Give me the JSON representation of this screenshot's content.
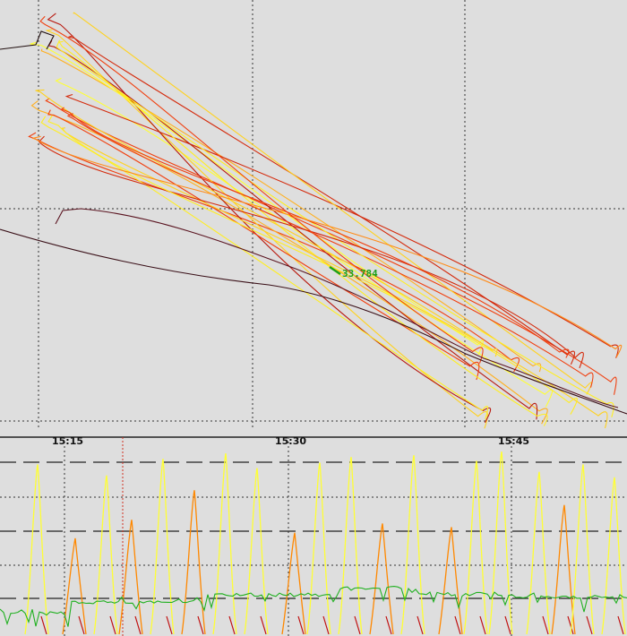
{
  "chart_data": [
    {
      "type": "line",
      "title": "",
      "description_hint": "track overlay",
      "grid": true,
      "annotation": {
        "text": "33.784",
        "color": "#1ca01c"
      },
      "tracks": 24
    },
    {
      "type": "line",
      "title": "",
      "x_tick_labels": [
        "15:15",
        "15:30",
        "15:45"
      ],
      "grid": true,
      "series_colors": {
        "high": "#ffff33",
        "mid": "#ff8800",
        "low": "#cc0000",
        "baseline": "#20b020"
      },
      "peaks": [
        {
          "t": 0.06,
          "h": 0.92,
          "c": "#ffff33"
        },
        {
          "t": 0.12,
          "h": 0.52,
          "c": "#ff8800"
        },
        {
          "t": 0.17,
          "h": 0.86,
          "c": "#ffff33"
        },
        {
          "t": 0.21,
          "h": 0.62,
          "c": "#ff8800"
        },
        {
          "t": 0.26,
          "h": 0.95,
          "c": "#ffff33"
        },
        {
          "t": 0.31,
          "h": 0.78,
          "c": "#ff8800"
        },
        {
          "t": 0.36,
          "h": 0.98,
          "c": "#ffff33"
        },
        {
          "t": 0.41,
          "h": 0.9,
          "c": "#ffff33"
        },
        {
          "t": 0.47,
          "h": 0.55,
          "c": "#ff8800"
        },
        {
          "t": 0.51,
          "h": 0.93,
          "c": "#ffff33"
        },
        {
          "t": 0.56,
          "h": 0.96,
          "c": "#ffff33"
        },
        {
          "t": 0.61,
          "h": 0.6,
          "c": "#ff8800"
        },
        {
          "t": 0.66,
          "h": 0.97,
          "c": "#ffff33"
        },
        {
          "t": 0.72,
          "h": 0.58,
          "c": "#ff8800"
        },
        {
          "t": 0.76,
          "h": 0.94,
          "c": "#ffff33"
        },
        {
          "t": 0.8,
          "h": 0.99,
          "c": "#ffff33"
        },
        {
          "t": 0.86,
          "h": 0.88,
          "c": "#ffff33"
        },
        {
          "t": 0.9,
          "h": 0.7,
          "c": "#ff8800"
        },
        {
          "t": 0.93,
          "h": 0.92,
          "c": "#ffff33"
        },
        {
          "t": 0.98,
          "h": 0.85,
          "c": "#ffff33"
        }
      ]
    }
  ]
}
